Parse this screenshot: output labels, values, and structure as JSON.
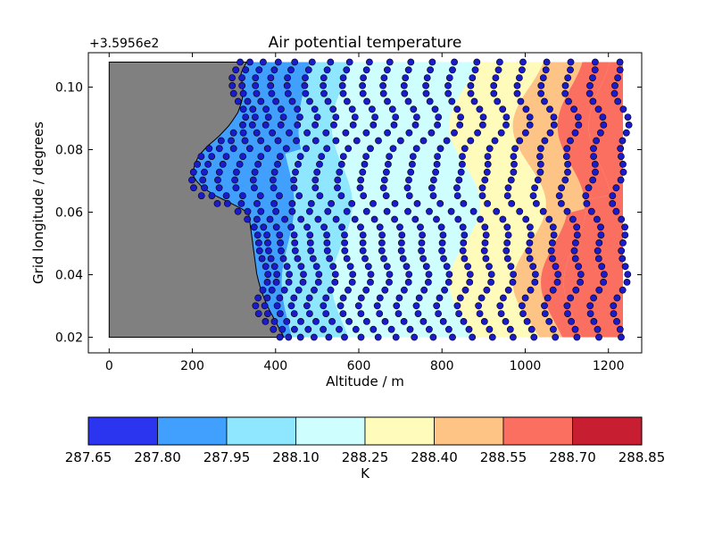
{
  "chart_data": {
    "type": "contour",
    "title": "Air potential temperature",
    "xlabel": "Altitude / m",
    "ylabel": "Grid longitude / degrees",
    "y_offset_label": "+3.5956e2",
    "xlim": [
      -50,
      1280
    ],
    "ylim": [
      0.015,
      0.111
    ],
    "x_ticks": [
      "0",
      "200",
      "400",
      "600",
      "800",
      "1000",
      "1200"
    ],
    "x_tick_values": [
      0,
      200,
      400,
      600,
      800,
      1000,
      1200
    ],
    "y_ticks": [
      "0.02",
      "0.04",
      "0.06",
      "0.08",
      "0.10"
    ],
    "y_tick_values": [
      0.02,
      0.04,
      0.06,
      0.08,
      0.1
    ],
    "grid": false,
    "terrain": {
      "color": "#808080",
      "x_start": 0,
      "surface": [
        {
          "y": 0.02,
          "x": 420
        },
        {
          "y": 0.025,
          "x": 400
        },
        {
          "y": 0.03,
          "x": 380
        },
        {
          "y": 0.035,
          "x": 365
        },
        {
          "y": 0.04,
          "x": 355
        },
        {
          "y": 0.045,
          "x": 350
        },
        {
          "y": 0.05,
          "x": 345
        },
        {
          "y": 0.055,
          "x": 340
        },
        {
          "y": 0.06,
          "x": 335
        },
        {
          "y": 0.063,
          "x": 290
        },
        {
          "y": 0.066,
          "x": 245
        },
        {
          "y": 0.069,
          "x": 215
        },
        {
          "y": 0.072,
          "x": 200
        },
        {
          "y": 0.075,
          "x": 205
        },
        {
          "y": 0.078,
          "x": 215
        },
        {
          "y": 0.081,
          "x": 235
        },
        {
          "y": 0.084,
          "x": 262
        },
        {
          "y": 0.088,
          "x": 290
        },
        {
          "y": 0.092,
          "x": 310
        },
        {
          "y": 0.096,
          "x": 320
        },
        {
          "y": 0.1,
          "x": 322
        },
        {
          "y": 0.104,
          "x": 315
        },
        {
          "y": 0.108,
          "x": 330
        }
      ]
    },
    "model_levels": 20,
    "levels": [
      287.65,
      287.8,
      287.95,
      288.1,
      288.25,
      288.4,
      288.55,
      288.7,
      288.85
    ],
    "level_labels": [
      "287.65",
      "287.80",
      "287.95",
      "288.10",
      "288.25",
      "288.40",
      "288.55",
      "288.70",
      "288.85"
    ],
    "level_colors": [
      "#2b35f0",
      "#41a0fd",
      "#8ee6ff",
      "#cefffe",
      "#fffbba",
      "#fdc486",
      "#fb6f60",
      "#c81e32"
    ],
    "colorbar_label": "K",
    "marker_color": "#1b1bce",
    "marker_edge": "#000000"
  }
}
